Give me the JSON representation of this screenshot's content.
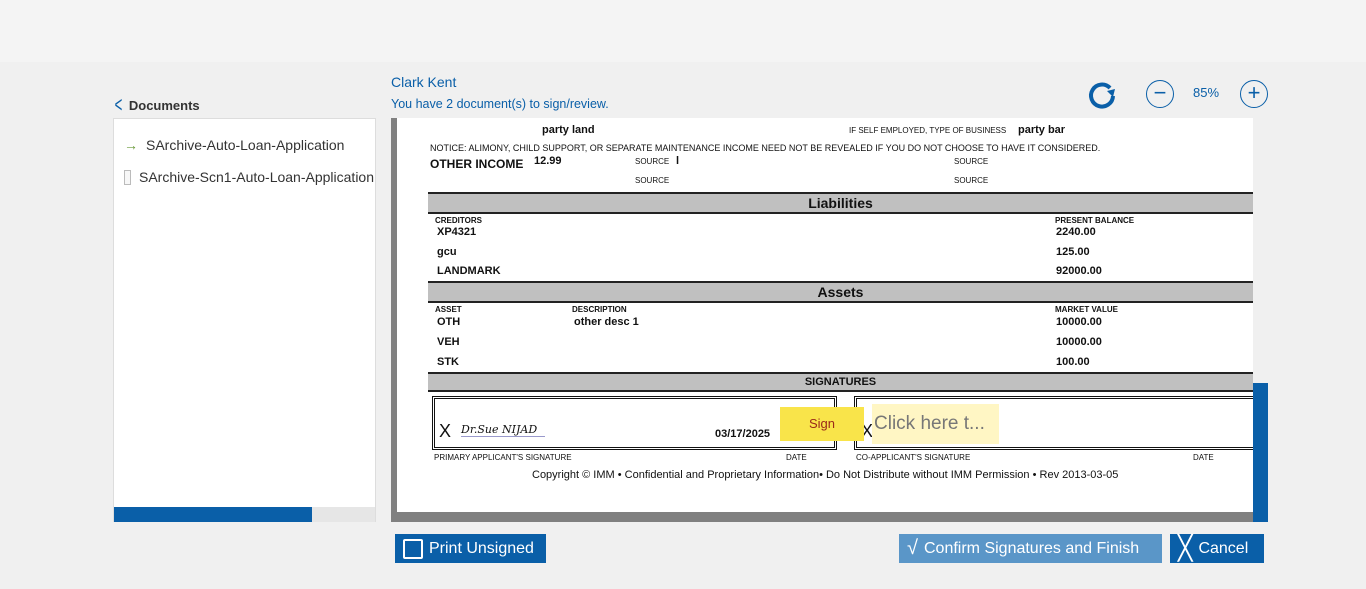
{
  "header": {
    "user_name": "Clark Kent",
    "subtitle": "You have 2 document(s) to sign/review."
  },
  "sidebar": {
    "title": "Documents",
    "items": [
      {
        "label": "SArchive-Auto-Loan-Application",
        "icon": "arrow-right-icon"
      },
      {
        "label": "SArchive-Scn1-Auto-Loan-Application",
        "icon": "document-icon"
      }
    ],
    "progress_percent": 76
  },
  "toolbar": {
    "zoom": "85%"
  },
  "document": {
    "employer": "party land",
    "self_employed_label": "IF SELF EMPLOYED, TYPE OF BUSINESS",
    "business": "party bar",
    "notice": "NOTICE: ALIMONY, CHILD SUPPORT, OR SEPARATE MAINTENANCE INCOME NEED NOT BE REVEALED IF YOU DO NOT CHOOSE TO HAVE IT CONSIDERED.",
    "other_income_label": "OTHER INCOME",
    "other_income": "12.99",
    "source_label": "SOURCE",
    "source_value": "l",
    "liabilities": {
      "title": "Liabilities",
      "col_creditors": "CREDITORS",
      "col_balance": "PRESENT BALANCE",
      "rows": [
        {
          "creditor": "XP4321",
          "balance": "2240.00"
        },
        {
          "creditor": "gcu",
          "balance": "125.00"
        },
        {
          "creditor": "LANDMARK",
          "balance": "92000.00"
        }
      ]
    },
    "assets": {
      "title": "Assets",
      "col_asset": "ASSET",
      "col_description": "DESCRIPTION",
      "col_value": "MARKET VALUE",
      "rows": [
        {
          "asset": "OTH",
          "description": "other desc 1",
          "value": "10000.00"
        },
        {
          "asset": "VEH",
          "description": "",
          "value": "10000.00"
        },
        {
          "asset": "STK",
          "description": "",
          "value": "100.00"
        }
      ]
    },
    "signatures": {
      "title": "SIGNATURES",
      "x_mark": "X",
      "primary_signature": "Dr.Sue NIJAD",
      "primary_date": "03/17/2025",
      "primary_label": "PRIMARY APPLICANT'S SIGNATURE",
      "date_label": "DATE",
      "co_label": "CO-APPLICANT'S SIGNATURE",
      "sign_tab": "Sign",
      "click_here": "Click here t..."
    },
    "copyright": "Copyright © IMM • Confidential and Proprietary Information• Do Not Distribute without IMM Permission • Rev 2013-03-05"
  },
  "buttons": {
    "print": "Print Unsigned",
    "confirm": "Confirm Signatures and Finish",
    "cancel": "Cancel"
  }
}
